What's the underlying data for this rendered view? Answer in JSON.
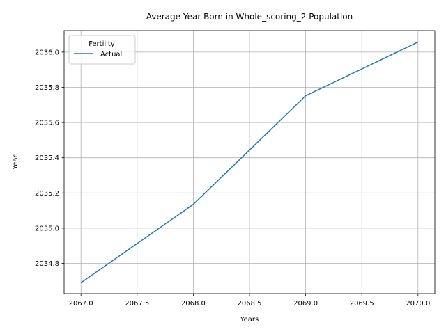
{
  "chart_data": {
    "type": "line",
    "title": "Average Year Born in Whole_scoring_2 Population",
    "xlabel": "Years",
    "ylabel": "Year",
    "xlim": [
      2066.85,
      2070.15
    ],
    "ylim": [
      2034.628,
      2036.122
    ],
    "xticks": [
      2067.0,
      2067.5,
      2068.0,
      2068.5,
      2069.0,
      2069.5,
      2070.0
    ],
    "xtick_labels": [
      "2067.0",
      "2067.5",
      "2068.0",
      "2068.5",
      "2069.0",
      "2069.5",
      "2070.0"
    ],
    "yticks": [
      2034.8,
      2035.0,
      2035.2,
      2035.4,
      2035.6,
      2035.8,
      2036.0
    ],
    "ytick_labels": [
      "2034.8",
      "2035.0",
      "2035.2",
      "2035.4",
      "2035.6",
      "2035.8",
      "2036.0"
    ],
    "grid": true,
    "legend": {
      "title": "Fertility",
      "placement": "top-left"
    },
    "series": [
      {
        "name": "Actual",
        "color": "#1f77b4",
        "x": [
          2067,
          2068,
          2069,
          2070
        ],
        "y": [
          2034.69,
          2035.135,
          2035.752,
          2036.057
        ]
      }
    ]
  }
}
